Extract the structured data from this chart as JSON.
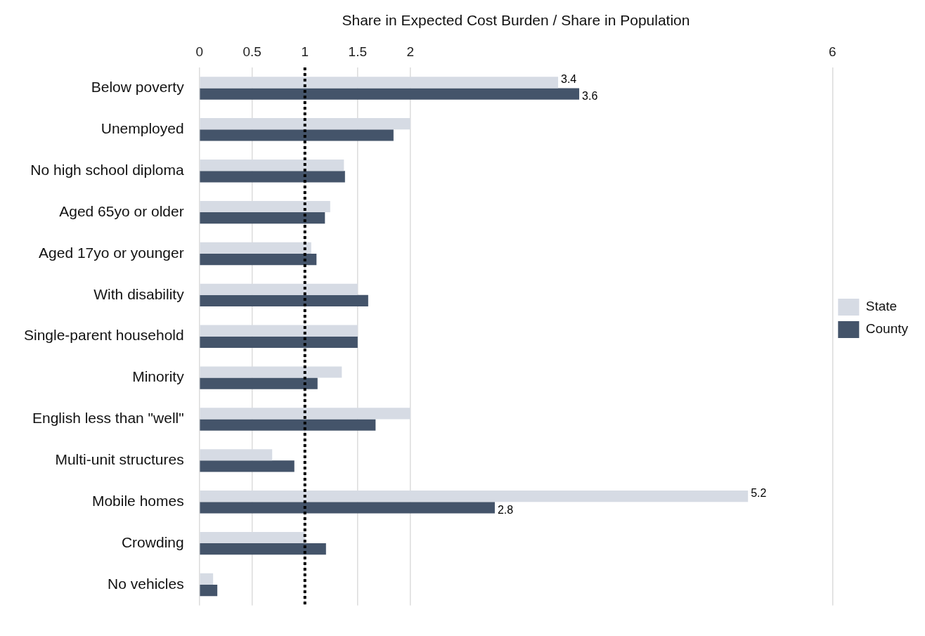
{
  "chart_data": {
    "type": "bar",
    "orientation": "horizontal",
    "xlabel": "Share in Expected Cost Burden / Share in Population",
    "categories": [
      "Below poverty",
      "Unemployed",
      "No high school diploma",
      "Aged 65yo or older",
      "Aged 17yo or younger",
      "With disability",
      "Single-parent household",
      "Minority",
      "English less than \"well\"",
      "Multi-unit structures",
      "Mobile homes",
      "Crowding",
      "No vehicles"
    ],
    "series": [
      {
        "name": "State",
        "color": "#d6dbe4",
        "values": [
          3.4,
          2.0,
          1.37,
          1.24,
          1.06,
          1.5,
          1.5,
          1.35,
          2.0,
          0.69,
          5.2,
          1.0,
          0.13
        ],
        "value_labels": [
          "3.4",
          null,
          null,
          null,
          null,
          null,
          null,
          null,
          null,
          null,
          "5.2",
          null,
          null
        ]
      },
      {
        "name": "County",
        "color": "#44546a",
        "values": [
          3.6,
          1.84,
          1.38,
          1.19,
          1.11,
          1.6,
          1.5,
          1.12,
          1.67,
          0.9,
          2.8,
          1.2,
          0.17
        ],
        "value_labels": [
          "3.6",
          null,
          null,
          null,
          null,
          null,
          null,
          null,
          null,
          null,
          "2.8",
          null,
          null
        ]
      }
    ],
    "xlim": [
      0,
      6
    ],
    "xticks": [
      0,
      0.5,
      1,
      1.5,
      2,
      6
    ],
    "ref_lines": [
      {
        "axis": "x",
        "value": 1,
        "line_style": "dotted",
        "color": "#000000"
      }
    ],
    "grid": "x",
    "legend": "right"
  }
}
